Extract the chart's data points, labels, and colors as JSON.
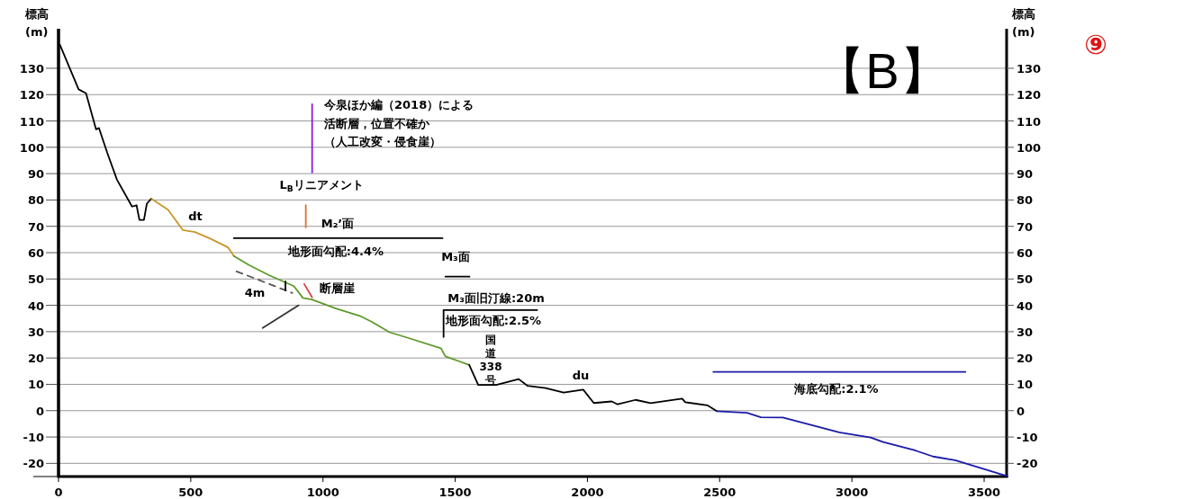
{
  "chart_data": {
    "type": "line",
    "title": "【B】",
    "subtitle": "⑨",
    "ylabel": "標高 (m)",
    "y2label": "標高 (m)",
    "xlim": [
      0,
      3585
    ],
    "ylim": [
      -25,
      145
    ],
    "y2lim": [
      -25,
      145
    ],
    "xticks": [
      0,
      500,
      1000,
      1500,
      2000,
      2500,
      3000,
      3500
    ],
    "yticks": [
      -20,
      -10,
      0,
      10,
      20,
      30,
      40,
      50,
      60,
      70,
      80,
      90,
      100,
      110,
      120,
      130
    ],
    "y2ticks": [
      -20,
      -10,
      0,
      10,
      20,
      30,
      40,
      50,
      60,
      70,
      80,
      90,
      100,
      110,
      120,
      130
    ],
    "grid": "y",
    "marker": "none",
    "line_style": "solid",
    "series": [
      {
        "color": "#000000",
        "x": [
          5,
          76,
          104,
          142,
          153,
          184,
          221,
          278,
          295,
          306,
          323,
          334,
          351
        ],
        "values": [
          139,
          122,
          120.5,
          106.8,
          107.3,
          98,
          87.7,
          77.5,
          78,
          72.4,
          72.4,
          78.6,
          80.5
        ]
      },
      {
        "color": "#c8962a",
        "x": [
          351,
          414,
          470,
          516,
          572,
          641,
          663
        ],
        "values": [
          80.5,
          76.3,
          68.6,
          67.8,
          65.4,
          62,
          58.7
        ]
      },
      {
        "color": "#5e9a2a",
        "x": [
          663,
          720,
          799,
          890,
          924,
          958,
          1049,
          1139,
          1185,
          1253,
          1310,
          1446,
          1463,
          1553
        ],
        "values": [
          58.7,
          55.3,
          51.3,
          47.3,
          42.8,
          42.2,
          38.8,
          36,
          33.7,
          29.7,
          28,
          23.7,
          20.6,
          17.4
        ]
      },
      {
        "color": "#000000",
        "x": [
          1553,
          1587,
          1655,
          1740,
          1774,
          1842,
          1910,
          1984,
          2024,
          2092,
          2114,
          2182,
          2239,
          2358,
          2370,
          2455,
          2489
        ],
        "values": [
          17.4,
          9.8,
          9.8,
          12,
          9.4,
          8.6,
          6.9,
          8,
          2.9,
          3.5,
          2.4,
          4.1,
          2.9,
          4.6,
          3.2,
          2,
          -0.2
        ]
      },
      {
        "color": "#1a1aaa",
        "x": [
          2489,
          2603,
          2656,
          2739,
          2952,
          3071,
          3118,
          3236,
          3307,
          3390,
          3449,
          3585
        ],
        "values": [
          -0.2,
          -0.8,
          -2.5,
          -2.6,
          -8.2,
          -10.2,
          -11.9,
          -15,
          -17.4,
          -18.8,
          -20.6,
          -24.8
        ]
      },
      {
        "color": "#8a1ae0",
        "x": [
          959,
          959
        ],
        "values": [
          90.4,
          116.4
        ]
      },
      {
        "color": "#e07030",
        "x": [
          935,
          935
        ],
        "values": [
          78,
          69.6
        ]
      },
      {
        "color": "#000000",
        "x": [
          663,
          1452
        ],
        "values": [
          65.5,
          65.5
        ]
      },
      {
        "color": "#000000",
        "x": [
          1463,
          1554
        ],
        "values": [
          50.9,
          50.9
        ]
      },
      {
        "color": "#000000",
        "x": [
          1810,
          1456,
          1456
        ],
        "values": [
          38.2,
          38.2,
          28
        ]
      },
      {
        "color": "#e04040",
        "x": [
          929,
          959
        ],
        "values": [
          48.1,
          43
        ]
      },
      {
        "color": "#555555",
        "line_style": "dashed",
        "x": [
          673,
          884
        ],
        "values": [
          52.9,
          44.7
        ]
      },
      {
        "color": "#000000",
        "x": [
          858,
          858
        ],
        "values": [
          49.1,
          45.7
        ]
      },
      {
        "color": "#333333",
        "x": [
          772,
          908
        ],
        "values": [
          31.4,
          40
        ]
      },
      {
        "color": "#1a1aaa",
        "x": [
          2476,
          3429
        ],
        "values": [
          14.7,
          14.7
        ]
      }
    ],
    "annotations": [
      "今泉ほか編（2018）による",
      "活断層，位置不確か",
      "（人工改変・侵食崖）",
      "L$_{B}$リニアメント",
      "M₂’面",
      "dt",
      "地形面勾配:4.4%",
      "M₃面",
      "断層崖",
      "4m",
      "M₃面旧汀線:20m",
      "地形面勾配:2.5%",
      "国道338号",
      "du",
      "海底勾配:2.1%"
    ]
  }
}
